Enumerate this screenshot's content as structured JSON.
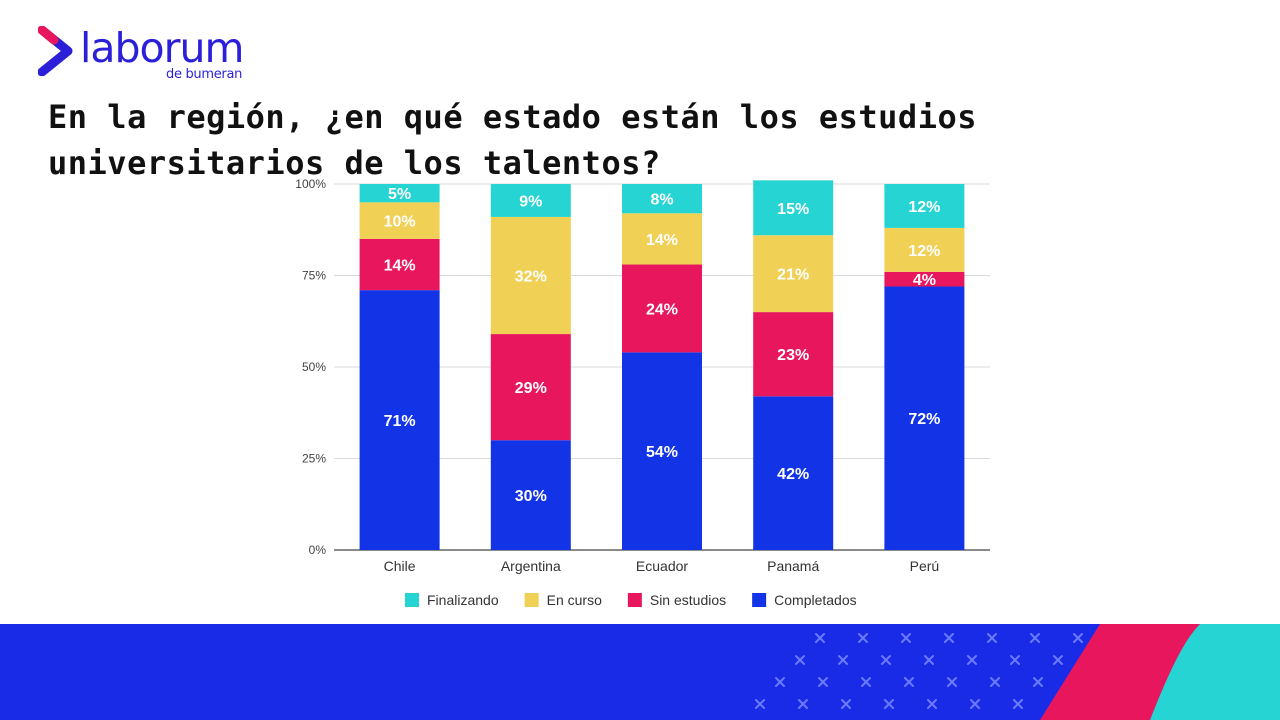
{
  "brand": {
    "name": "laborum",
    "tagline": "de bumeran",
    "colors": {
      "primary": "#2b1fd8",
      "pink": "#e8175d",
      "cyan": "#27d4d4"
    }
  },
  "headline": "En la región, ¿en qué estado están los estudios universitarios de los talentos?",
  "chart_data": {
    "type": "bar",
    "stacked": true,
    "categories": [
      "Chile",
      "Argentina",
      "Ecuador",
      "Panamá",
      "Perú"
    ],
    "y_ticks": [
      "0%",
      "25%",
      "50%",
      "75%",
      "100%"
    ],
    "ylim": [
      0,
      100
    ],
    "grid": true,
    "legend_position": "bottom",
    "series": [
      {
        "name": "Completados",
        "color": "#1333e6",
        "values": [
          71,
          30,
          54,
          42,
          72
        ]
      },
      {
        "name": "Sin estudios",
        "color": "#e8175d",
        "values": [
          14,
          29,
          24,
          23,
          4
        ]
      },
      {
        "name": "En curso",
        "color": "#f0d055",
        "values": [
          10,
          32,
          14,
          21,
          12
        ]
      },
      {
        "name": "Finalizando",
        "color": "#27d4d4",
        "values": [
          5,
          9,
          8,
          15,
          12
        ]
      }
    ],
    "legend_order": [
      "Finalizando",
      "En curso",
      "Sin estudios",
      "Completados"
    ],
    "data_labels": [
      [
        "71%",
        "30%",
        "54%",
        "42%",
        "72%"
      ],
      [
        "14%",
        "29%",
        "24%",
        "23%",
        "4%"
      ],
      [
        "10%",
        "32%",
        "14%",
        "21%",
        "12%"
      ],
      [
        "5%",
        "9%",
        "8%",
        "15%",
        "12%"
      ]
    ]
  }
}
